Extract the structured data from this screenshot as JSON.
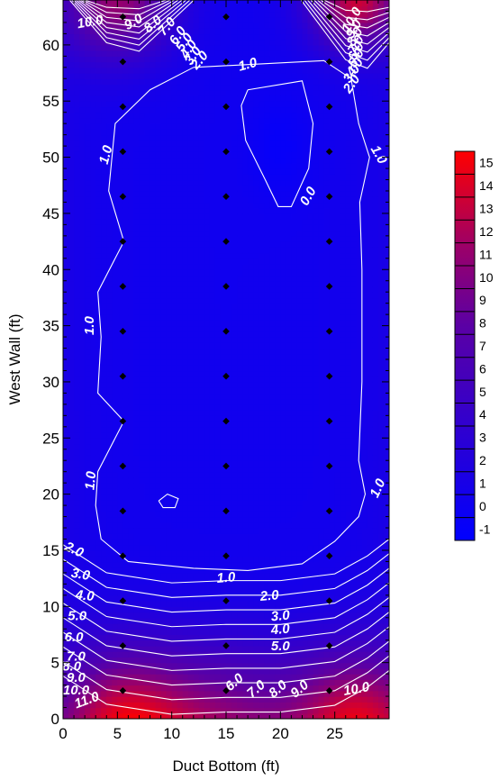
{
  "chart_data": {
    "type": "heatmap",
    "title": "",
    "xlabel": "Duct Bottom (ft)",
    "ylabel": "West Wall (ft)",
    "xlim": [
      0,
      30
    ],
    "ylim": [
      0,
      64
    ],
    "x_ticks": [
      0,
      5,
      10,
      15,
      20,
      25
    ],
    "y_ticks": [
      0,
      5,
      10,
      15,
      20,
      25,
      30,
      35,
      40,
      45,
      50,
      55,
      60
    ],
    "colorbar": {
      "levels": [
        "15",
        "14",
        "13",
        "12",
        "11",
        "10",
        "9",
        "8",
        "7",
        "6",
        "5",
        "4",
        "3",
        "2",
        "1",
        "0",
        "-1"
      ],
      "min_color": "#0000ff",
      "mid_color": "#7f007f",
      "max_color": "#ff0000"
    },
    "measurement_points": {
      "x": [
        5.5,
        15,
        24.5
      ],
      "y": [
        2.5,
        6.5,
        10.5,
        14.5,
        18.5,
        22.5,
        26.5,
        30.5,
        34.5,
        38.5,
        42.5,
        46.5,
        50.5,
        54.5,
        58.5,
        62.5
      ]
    },
    "contour_labels": [
      {
        "text": "10.0",
        "x": 2.5,
        "y": 62.0,
        "rot": -10
      },
      {
        "text": "9.0",
        "x": 6.5,
        "y": 62.0,
        "rot": -30
      },
      {
        "text": "8.0",
        "x": 8.3,
        "y": 61.8,
        "rot": -40
      },
      {
        "text": "7.0",
        "x": 9.6,
        "y": 61.6,
        "rot": -50
      },
      {
        "text": "6.0",
        "x": 10.6,
        "y": 60.8,
        "rot": -55
      },
      {
        "text": "5.0",
        "x": 11.2,
        "y": 60.2,
        "rot": -55
      },
      {
        "text": "4.0",
        "x": 11.6,
        "y": 59.6,
        "rot": -55
      },
      {
        "text": "3.0",
        "x": 12.0,
        "y": 59.0,
        "rot": -55
      },
      {
        "text": "2.0",
        "x": 12.6,
        "y": 58.6,
        "rot": -50
      },
      {
        "text": "1.0",
        "x": 17.0,
        "y": 58.2,
        "rot": -15
      },
      {
        "text": "10.0",
        "x": 26.6,
        "y": 62.2,
        "rot": -60
      },
      {
        "text": "9.0",
        "x": 26.8,
        "y": 61.4,
        "rot": -60
      },
      {
        "text": "8.0",
        "x": 26.9,
        "y": 60.7,
        "rot": -60
      },
      {
        "text": "7.0",
        "x": 27.0,
        "y": 60.0,
        "rot": -60
      },
      {
        "text": "6.0",
        "x": 27.0,
        "y": 59.4,
        "rot": -60
      },
      {
        "text": "5.0",
        "x": 27.0,
        "y": 58.8,
        "rot": -60
      },
      {
        "text": "4.0",
        "x": 26.9,
        "y": 58.0,
        "rot": -55
      },
      {
        "text": "3.0",
        "x": 26.6,
        "y": 57.4,
        "rot": -55
      },
      {
        "text": "2.0",
        "x": 26.6,
        "y": 56.5,
        "rot": -55
      },
      {
        "text": "1.0",
        "x": 4.0,
        "y": 50.2,
        "rot": -75
      },
      {
        "text": "1.0",
        "x": 29.0,
        "y": 50.2,
        "rot": 60
      },
      {
        "text": "0.0",
        "x": 22.6,
        "y": 46.5,
        "rot": -60
      },
      {
        "text": "1.0",
        "x": 2.5,
        "y": 35.0,
        "rot": -90
      },
      {
        "text": "1.0",
        "x": 2.6,
        "y": 21.2,
        "rot": -85
      },
      {
        "text": "1.0",
        "x": 29.0,
        "y": 20.5,
        "rot": -65
      },
      {
        "text": "2.0",
        "x": 1.0,
        "y": 15.0,
        "rot": 25
      },
      {
        "text": "1.0",
        "x": 15.0,
        "y": 12.5,
        "rot": -5
      },
      {
        "text": "3.0",
        "x": 1.6,
        "y": 12.8,
        "rot": 10
      },
      {
        "text": "4.0",
        "x": 2.0,
        "y": 10.9,
        "rot": 5
      },
      {
        "text": "5.0",
        "x": 1.3,
        "y": 9.1,
        "rot": 0
      },
      {
        "text": "2.0",
        "x": 19.0,
        "y": 10.9,
        "rot": -5
      },
      {
        "text": "3.0",
        "x": 20.0,
        "y": 9.1,
        "rot": -5
      },
      {
        "text": "4.0",
        "x": 20.0,
        "y": 7.9,
        "rot": -5
      },
      {
        "text": "5.0",
        "x": 20.0,
        "y": 6.4,
        "rot": 0
      },
      {
        "text": "6.0",
        "x": 1.0,
        "y": 7.2,
        "rot": 0
      },
      {
        "text": "7.0",
        "x": 1.2,
        "y": 5.5,
        "rot": 0
      },
      {
        "text": "8.0",
        "x": 0.8,
        "y": 4.6,
        "rot": 0
      },
      {
        "text": "9.0",
        "x": 1.2,
        "y": 3.6,
        "rot": 0
      },
      {
        "text": "10.0",
        "x": 1.2,
        "y": 2.5,
        "rot": 0
      },
      {
        "text": "11.0",
        "x": 2.2,
        "y": 1.6,
        "rot": -20
      },
      {
        "text": "6.0",
        "x": 15.8,
        "y": 3.2,
        "rot": -40
      },
      {
        "text": "7.0",
        "x": 17.8,
        "y": 2.6,
        "rot": -40
      },
      {
        "text": "8.0",
        "x": 19.8,
        "y": 2.6,
        "rot": -40
      },
      {
        "text": "9.0",
        "x": 21.8,
        "y": 2.6,
        "rot": -40
      },
      {
        "text": "10.0",
        "x": 27.0,
        "y": 2.6,
        "rot": -10
      }
    ]
  }
}
